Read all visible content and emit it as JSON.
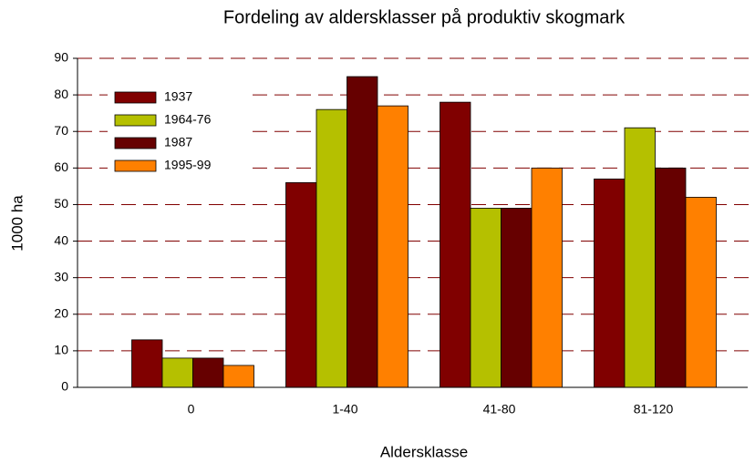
{
  "chart_data": {
    "type": "bar",
    "title": "Fordeling av aldersklasser på produktiv skogmark",
    "x_label": "Aldersklasse",
    "y_label": "1000 ha",
    "categories": [
      "0",
      "1-40",
      "41-80",
      "81-120"
    ],
    "series": [
      {
        "name": "1937",
        "color": "#800000",
        "values": [
          13,
          56,
          78,
          57
        ]
      },
      {
        "name": "1964-76",
        "color": "#b5c000",
        "values": [
          8,
          76,
          49,
          71
        ]
      },
      {
        "name": "1987",
        "color": "#660000",
        "values": [
          8,
          85,
          49,
          60
        ]
      },
      {
        "name": "1995-99",
        "color": "#ff8000",
        "values": [
          6,
          77,
          60,
          52
        ]
      }
    ],
    "ylim": [
      0,
      90
    ],
    "yticks": [
      0,
      10,
      20,
      30,
      40,
      50,
      60,
      70,
      80,
      90
    ],
    "grid": true,
    "legend": "upper left"
  }
}
